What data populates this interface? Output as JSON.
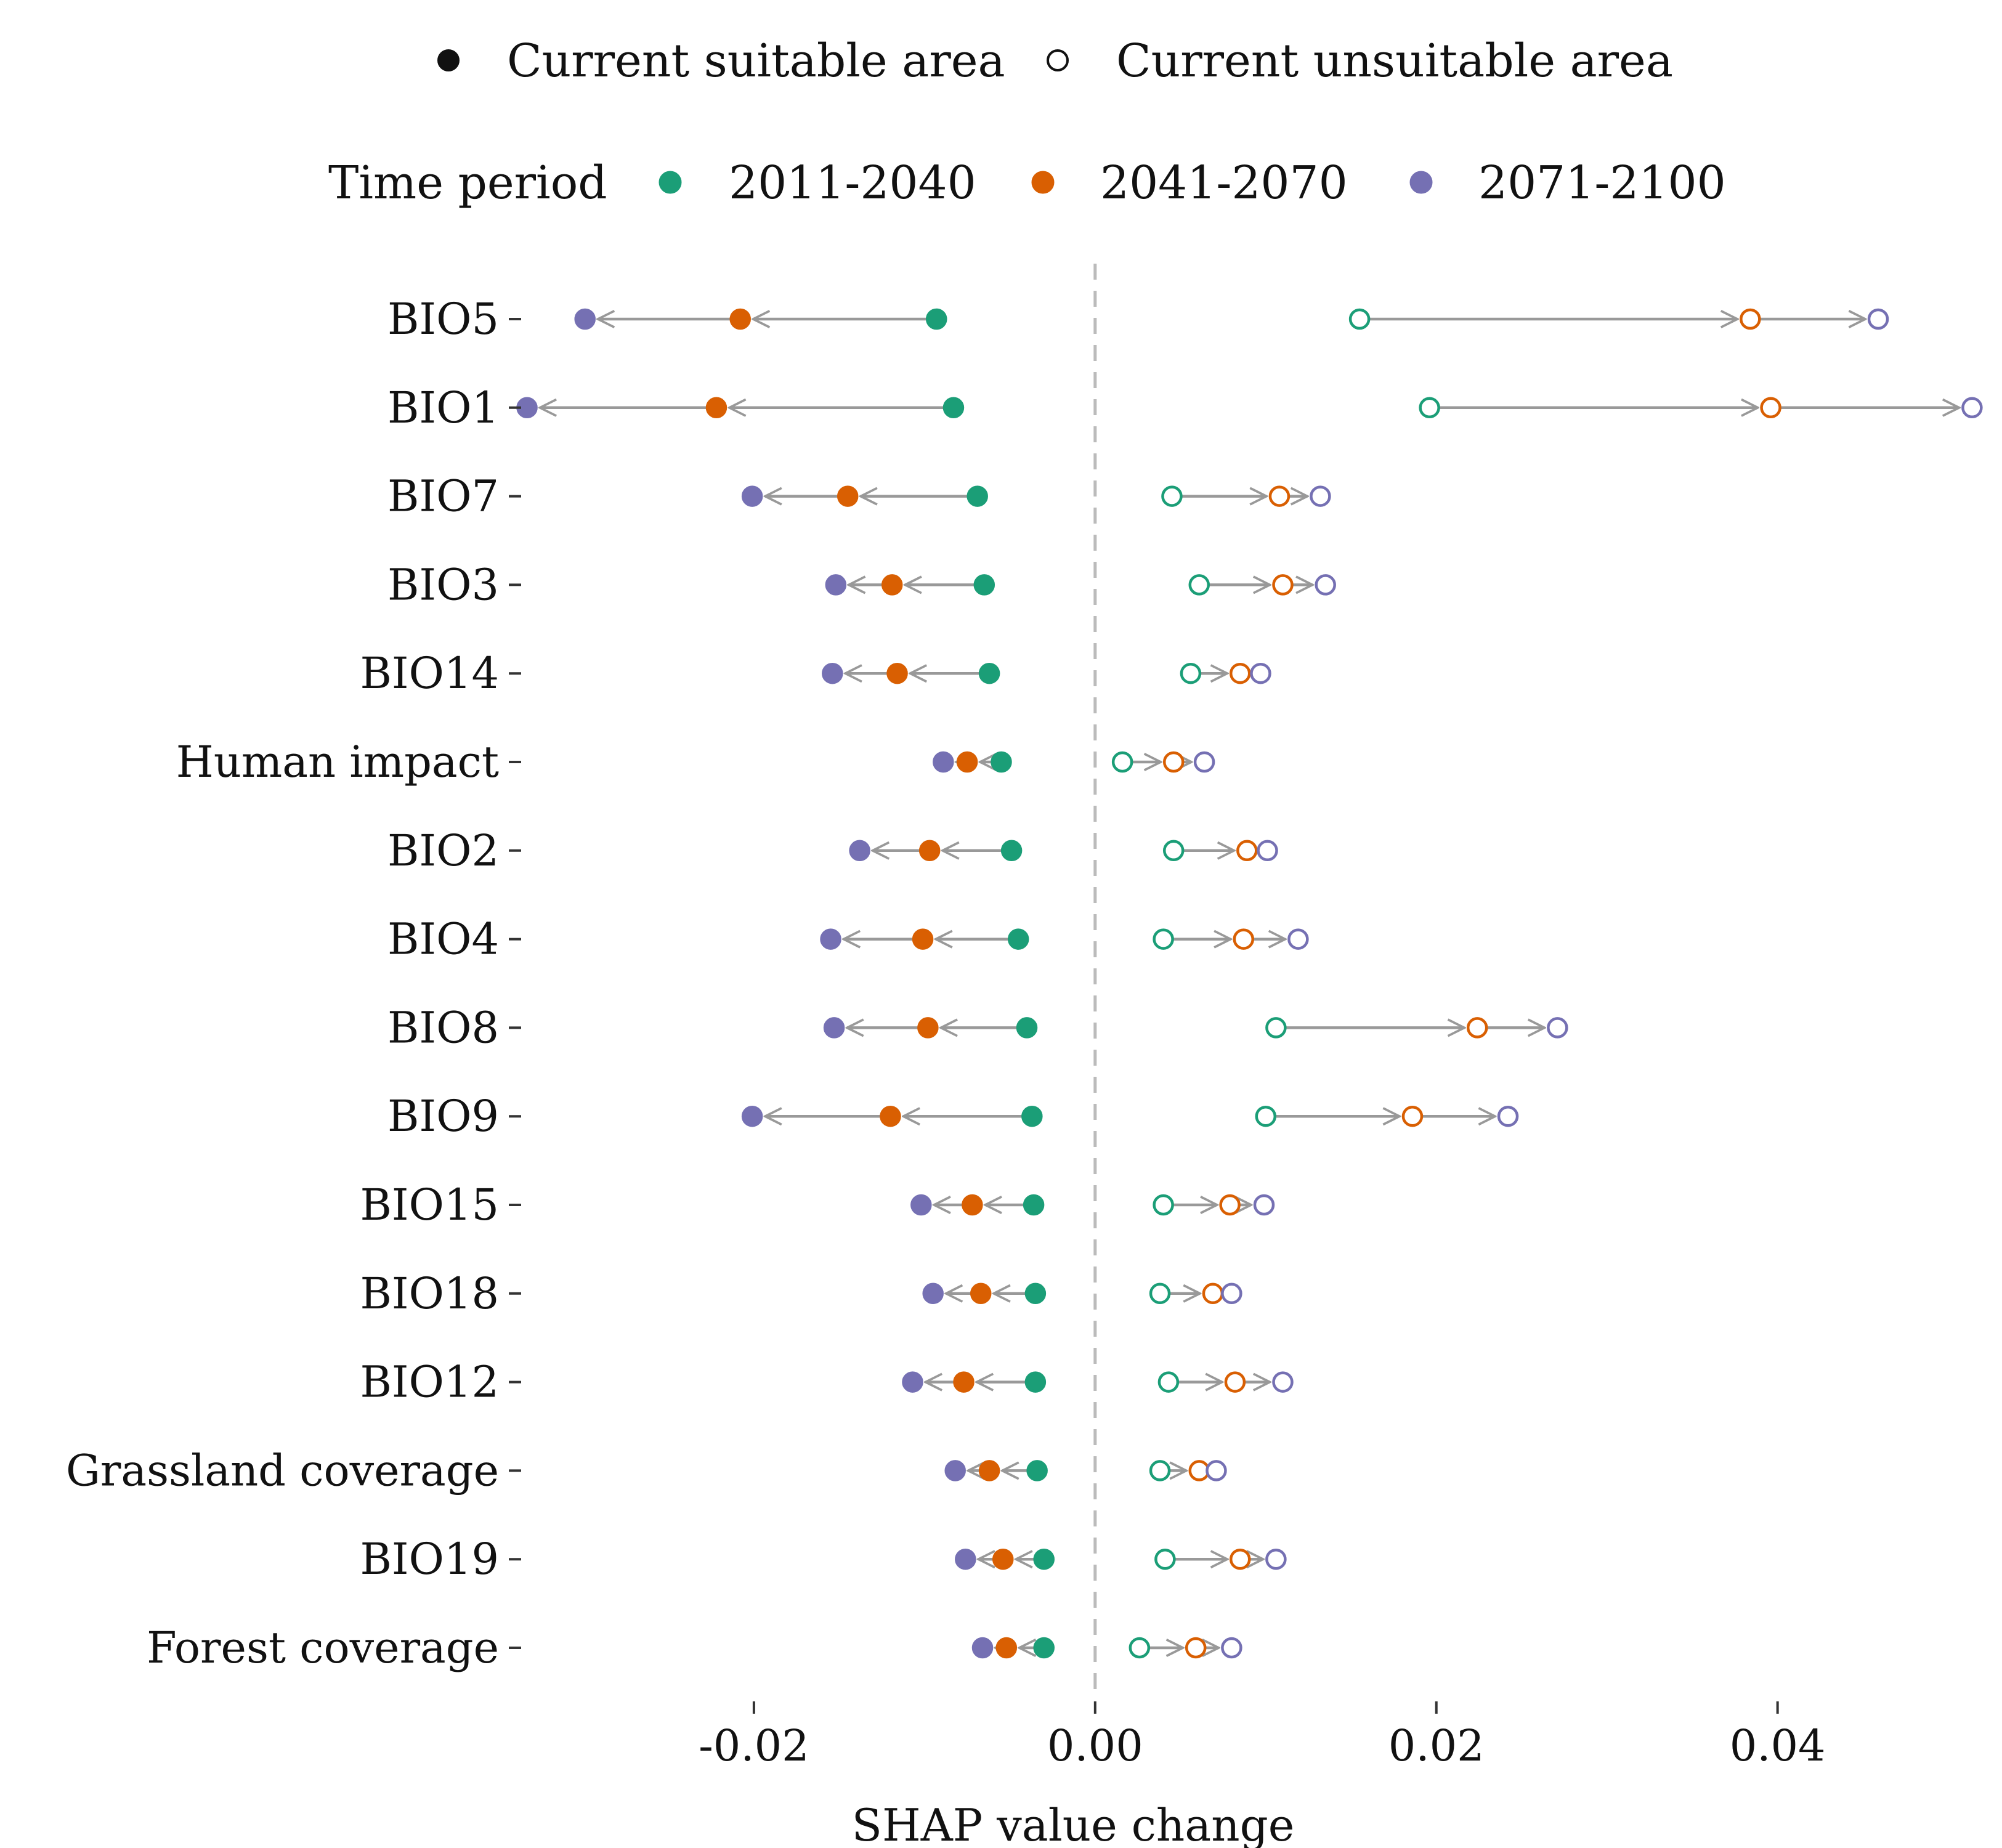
{
  "chart_data": {
    "type": "dumbbell",
    "xlabel": "SHAP value change",
    "ylabel": "",
    "xlim": [
      -0.0335,
      0.052
    ],
    "x_ticks": [
      -0.02,
      0.0,
      0.02,
      0.04
    ],
    "x_tick_labels": [
      "-0.02",
      "0.00",
      "0.02",
      "0.04"
    ],
    "zero_line": "dashed",
    "grid": false,
    "legend_position": "top",
    "legend_shape": {
      "items": [
        {
          "label": "Current suitable area",
          "marker": "filled-circle"
        },
        {
          "label": "Current unsuitable area",
          "marker": "open-circle"
        }
      ]
    },
    "legend_period": {
      "title": "Time period",
      "items": [
        {
          "label": "2011-2040",
          "color": "#1b9e77"
        },
        {
          "label": "2041-2070",
          "color": "#d95f02"
        },
        {
          "label": "2071-2100",
          "color": "#7570b3"
        }
      ]
    },
    "arrow_color": "#999999",
    "categories": [
      "BIO5",
      "BIO1",
      "BIO7",
      "BIO3",
      "BIO14",
      "Human impact",
      "BIO2",
      "BIO4",
      "BIO8",
      "BIO9",
      "BIO15",
      "BIO18",
      "BIO12",
      "Grassland coverage",
      "BIO19",
      "Forest coverage"
    ],
    "series": [
      {
        "name": "Current suitable area",
        "period": "2011-2040",
        "values": [
          -0.0093,
          -0.0083,
          -0.0069,
          -0.0065,
          -0.0062,
          -0.0055,
          -0.0049,
          -0.0045,
          -0.004,
          -0.0037,
          -0.0036,
          -0.0035,
          -0.0035,
          -0.0034,
          -0.003,
          -0.003
        ]
      },
      {
        "name": "Current suitable area",
        "period": "2041-2070",
        "values": [
          -0.0208,
          -0.0222,
          -0.0145,
          -0.0119,
          -0.0116,
          -0.0075,
          -0.0097,
          -0.0101,
          -0.0098,
          -0.012,
          -0.0072,
          -0.0067,
          -0.0077,
          -0.0062,
          -0.0054,
          -0.0052
        ]
      },
      {
        "name": "Current suitable area",
        "period": "2071-2100",
        "values": [
          -0.0299,
          -0.0333,
          -0.0201,
          -0.0152,
          -0.0154,
          -0.0089,
          -0.0138,
          -0.0155,
          -0.0153,
          -0.0201,
          -0.0102,
          -0.0095,
          -0.0107,
          -0.0082,
          -0.0076,
          -0.0066
        ]
      },
      {
        "name": "Current unsuitable area",
        "period": "2011-2040",
        "values": [
          0.0155,
          0.0196,
          0.0045,
          0.0061,
          0.0056,
          0.0016,
          0.0046,
          0.004,
          0.0106,
          0.01,
          0.004,
          0.0038,
          0.0043,
          0.0038,
          0.0041,
          0.0026
        ]
      },
      {
        "name": "Current unsuitable area",
        "period": "2041-2070",
        "values": [
          0.0384,
          0.0396,
          0.0108,
          0.011,
          0.0085,
          0.0046,
          0.0089,
          0.0087,
          0.0224,
          0.0186,
          0.0079,
          0.0069,
          0.0082,
          0.0061,
          0.0085,
          0.0059
        ]
      },
      {
        "name": "Current unsuitable area",
        "period": "2071-2100",
        "values": [
          0.0459,
          0.0514,
          0.0132,
          0.0135,
          0.0097,
          0.0064,
          0.0101,
          0.0119,
          0.0271,
          0.0242,
          0.0099,
          0.008,
          0.011,
          0.0071,
          0.0106,
          0.008
        ]
      }
    ]
  }
}
